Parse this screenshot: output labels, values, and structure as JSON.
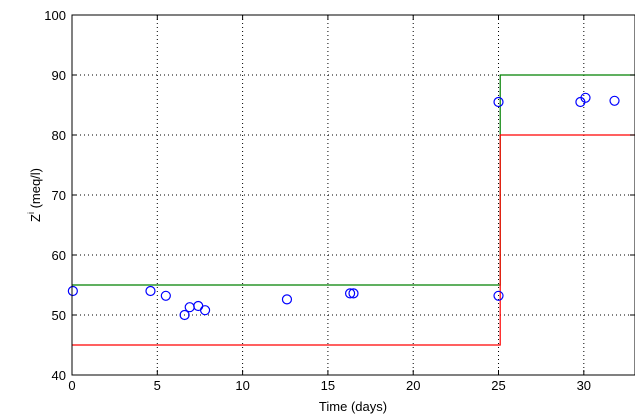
{
  "chart_data": {
    "type": "scatter",
    "title": "",
    "xlabel": "Time (days)",
    "ylabel_main": "Z",
    "ylabel_sup": "i",
    "ylabel_rest": " (meq/l)",
    "xlim": [
      0,
      33
    ],
    "ylim": [
      40,
      100
    ],
    "xticks": [
      0,
      5,
      10,
      15,
      20,
      25,
      30
    ],
    "yticks": [
      40,
      50,
      60,
      70,
      80,
      90,
      100
    ],
    "grid": true,
    "colors": {
      "points": "#0000ff",
      "upper": "#008000",
      "lower": "#ff0000"
    },
    "points": {
      "x": [
        0.05,
        4.6,
        5.5,
        6.6,
        6.9,
        7.4,
        7.8,
        12.6,
        16.3,
        16.5,
        25.0,
        25.0,
        29.8,
        30.1,
        31.8
      ],
      "y": [
        54,
        54,
        53.2,
        50,
        51.3,
        51.5,
        50.8,
        52.6,
        53.6,
        53.6,
        53.2,
        85.5,
        85.5,
        86.2,
        85.7
      ]
    },
    "upper_limit": {
      "x": [
        0,
        25.1,
        25.1,
        33
      ],
      "y": [
        55,
        55,
        90,
        90
      ]
    },
    "lower_limit": {
      "x": [
        0,
        25.1,
        25.1,
        33
      ],
      "y": [
        45,
        45,
        80,
        80
      ]
    }
  }
}
